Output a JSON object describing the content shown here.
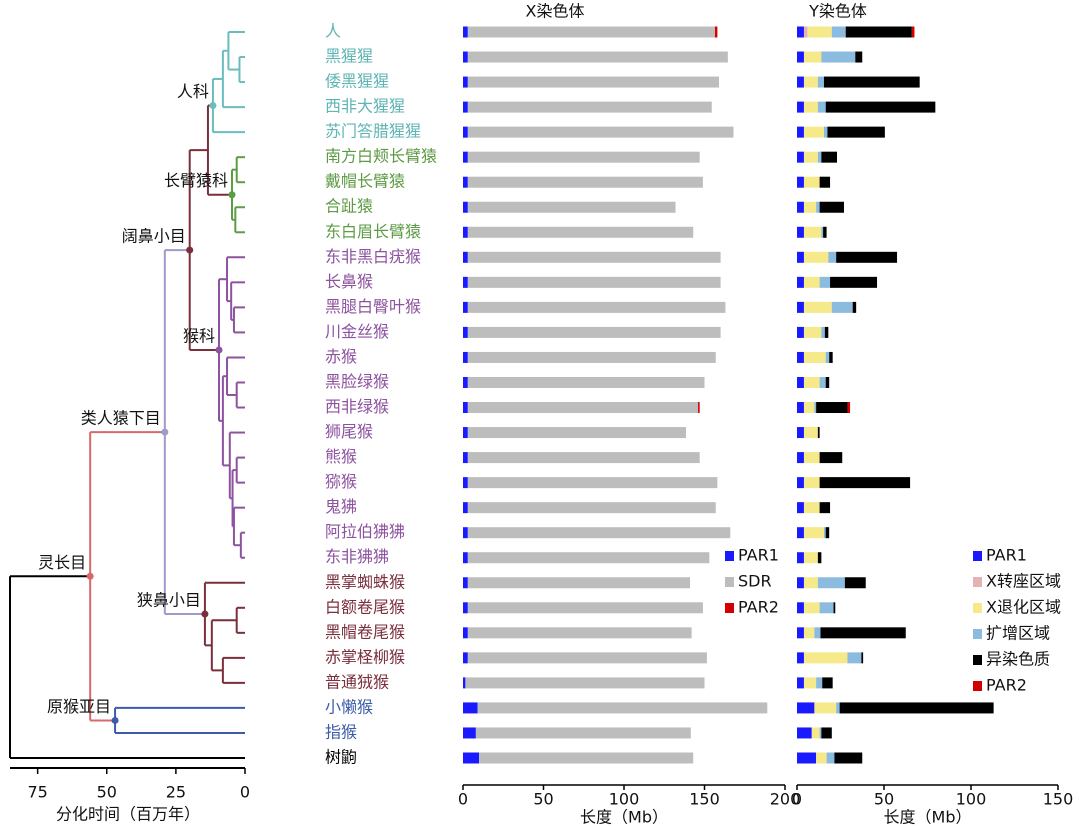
{
  "tree": {
    "xlabel": "分化时间（百万年）",
    "xlim": [
      85,
      0
    ],
    "xticks": [
      75,
      50,
      25,
      0
    ],
    "species": [
      {
        "name": "人",
        "color": "#5fb4b4"
      },
      {
        "name": "黑猩猩",
        "color": "#5fb4b4"
      },
      {
        "name": "倭黑猩猩",
        "color": "#5fb4b4"
      },
      {
        "name": "西非大猩猩",
        "color": "#5fb4b4"
      },
      {
        "name": "苏门答腊猩猩",
        "color": "#5fb4b4"
      },
      {
        "name": "南方白颊长臂猿",
        "color": "#5e9b45"
      },
      {
        "name": "戴帽长臂猿",
        "color": "#5e9b45"
      },
      {
        "name": "合趾猿",
        "color": "#5e9b45"
      },
      {
        "name": "东白眉长臂猿",
        "color": "#5e9b45"
      },
      {
        "name": "东非黑白疣猴",
        "color": "#8d52a0"
      },
      {
        "name": "长鼻猴",
        "color": "#8d52a0"
      },
      {
        "name": "黑腿白臀叶猴",
        "color": "#8d52a0"
      },
      {
        "name": "川金丝猴",
        "color": "#8d52a0"
      },
      {
        "name": "赤猴",
        "color": "#8d52a0"
      },
      {
        "name": "黑脸绿猴",
        "color": "#8d52a0"
      },
      {
        "name": "西非绿猴",
        "color": "#8d52a0"
      },
      {
        "name": "狮尾猴",
        "color": "#8d52a0"
      },
      {
        "name": "熊猴",
        "color": "#8d52a0"
      },
      {
        "name": "猕猴",
        "color": "#8d52a0"
      },
      {
        "name": "鬼狒",
        "color": "#8d52a0"
      },
      {
        "name": "阿拉伯狒狒",
        "color": "#8d52a0"
      },
      {
        "name": "东非狒狒",
        "color": "#8d52a0"
      },
      {
        "name": "黑掌蜘蛛猴",
        "color": "#7b2f3c"
      },
      {
        "name": "白额卷尾猴",
        "color": "#7b2f3c"
      },
      {
        "name": "黑帽卷尾猴",
        "color": "#7b2f3c"
      },
      {
        "name": "赤掌柽柳猴",
        "color": "#7b2f3c"
      },
      {
        "name": "普通狨猴",
        "color": "#7b2f3c"
      },
      {
        "name": "小懒猴",
        "color": "#3c5ba8"
      },
      {
        "name": "指猴",
        "color": "#3c5ba8"
      },
      {
        "name": "树鼩",
        "color": "#000000"
      }
    ],
    "root": {
      "age": 85,
      "color": "#000000",
      "children": [
        {
          "age": 56,
          "color": "#d9686b",
          "label": "灵长目",
          "children": [
            {
              "age": 29,
              "color": "#9d9bc9",
              "label": "类人猿下目",
              "children": [
                {
                  "age": 20,
                  "color": "#7b2f3c",
                  "label": "阔鼻小目",
                  "children": [
                    {
                      "age": 13.4,
                      "children": [
                        {
                          "age": 11.6,
                          "color": "#6bbcbc",
                          "label": "人科",
                          "children": [
                            {
                              "age": 8,
                              "children": [
                                {
                                  "age": 6,
                                  "children": [
                                    0,
                                    {
                                      "age": 2,
                                      "children": [
                                        1,
                                        2
                                      ]
                                    }
                                  ]
                                },
                                3
                              ]
                            },
                            4
                          ]
                        },
                        {
                          "age": 4.7,
                          "color": "#5e9b45",
                          "label": "长臂猿科",
                          "children": [
                            {
                              "age": 3,
                              "children": [
                                5,
                                6
                              ]
                            },
                            {
                              "age": 3.5,
                              "children": [
                                7,
                                8
                              ]
                            }
                          ]
                        }
                      ]
                    },
                    {
                      "age": 9.4,
                      "color": "#8d52a0",
                      "label": "猴科",
                      "children": [
                        {
                          "age": 6.5,
                          "children": [
                            9,
                            {
                              "age": 5,
                              "children": [
                                10,
                                {
                                  "age": 4,
                                  "children": [
                                    11,
                                    12
                                  ]
                                }
                              ]
                            }
                          ]
                        },
                        {
                          "age": 8,
                          "children": [
                            {
                              "age": 6.5,
                              "children": [
                                13,
                                {
                                  "age": 3,
                                  "children": [
                                    14,
                                    15
                                  ]
                                }
                              ]
                            },
                            {
                              "age": 5.5,
                              "children": [
                                16,
                                {
                                  "age": 4.5,
                                  "children": [
                                    {
                                      "age": 3,
                                      "children": [
                                        17,
                                        18
                                      ]
                                    },
                                    {
                                      "age": 4,
                                      "children": [
                                        19,
                                        {
                                          "age": 1.5,
                                          "children": [
                                            20,
                                            21
                                          ]
                                        }
                                      ]
                                    }
                                  ]
                                }
                              ]
                            }
                          ]
                        }
                      ]
                    }
                  ]
                },
                {
                  "age": 14.5,
                  "color": "#7b2f3c",
                  "label": "狭鼻小目",
                  "children": [
                    22,
                    {
                      "age": 12,
                      "children": [
                        {
                          "age": 3,
                          "children": [
                            23,
                            24
                          ]
                        },
                        {
                          "age": 8,
                          "children": [
                            25,
                            26
                          ]
                        }
                      ]
                    }
                  ]
                }
              ]
            },
            {
              "age": 47,
              "color": "#3c5ba8",
              "label": "原猴亚目",
              "children": [
                27,
                28
              ]
            }
          ]
        },
        29
      ]
    }
  },
  "chart_data": [
    {
      "type": "stacked_barh",
      "title": "X染色体",
      "xlabel": "长度（Mb）",
      "xlim": [
        0,
        200
      ],
      "xticks": [
        0,
        50,
        100,
        150,
        200
      ],
      "series": [
        {
          "name": "PAR1",
          "color": "#1a1aff",
          "values": [
            3,
            3,
            3,
            3,
            3,
            3,
            3,
            3,
            3,
            3,
            3,
            3,
            3,
            3,
            3,
            3,
            3,
            3,
            3,
            3,
            3,
            3,
            3,
            3,
            3,
            3,
            1.5,
            9,
            8,
            10
          ]
        },
        {
          "name": "SDR",
          "color": "#bdbdbd",
          "values": [
            153.5,
            161.5,
            156,
            151.5,
            165,
            144,
            146,
            129,
            140,
            157,
            157,
            160,
            157,
            154,
            147,
            143,
            135.5,
            144,
            155,
            154,
            163,
            150,
            138,
            146,
            139,
            148.5,
            148.5,
            180,
            133.5,
            133
          ]
        },
        {
          "name": "PAR2",
          "color": "#d40000",
          "values": [
            1.5,
            0,
            0,
            0,
            0,
            0,
            0,
            0,
            0,
            0,
            0,
            0,
            0,
            0,
            0,
            1,
            0,
            0,
            0,
            0,
            0,
            0,
            0,
            0,
            0,
            0,
            0,
            0,
            0,
            0
          ]
        }
      ]
    },
    {
      "type": "stacked_barh",
      "title": "Y染色体",
      "xlabel": "长度（Mb）",
      "xlim": [
        0,
        150
      ],
      "xticks": [
        0,
        50,
        100,
        150
      ],
      "series": [
        {
          "name": "PAR1",
          "color": "#1a1aff",
          "values": [
            4,
            4,
            4,
            4,
            4,
            4,
            4,
            4,
            4,
            4,
            4,
            4,
            4,
            4,
            4,
            4,
            4,
            4,
            4,
            4,
            4,
            4,
            4,
            4,
            4,
            4,
            4,
            10,
            8.5,
            11
          ]
        },
        {
          "name": "X转座区域",
          "color": "#e3b3b6",
          "values": [
            2,
            0,
            0,
            0,
            0,
            0,
            0,
            0,
            0,
            0,
            0,
            0,
            0,
            0,
            0,
            0,
            0,
            0,
            0,
            0,
            0,
            0,
            0,
            0,
            0,
            0,
            0,
            0,
            0,
            0
          ]
        },
        {
          "name": "X退化区域",
          "color": "#f5e98a",
          "values": [
            14,
            10,
            8,
            8,
            11.5,
            8,
            9,
            7,
            10,
            14,
            9,
            16,
            10,
            12.5,
            9,
            6,
            8,
            9,
            9,
            9,
            11.5,
            8,
            8,
            9,
            6,
            25,
            7,
            12.5,
            4.5,
            6
          ]
        },
        {
          "name": "扩增区域",
          "color": "#8cbbe0",
          "values": [
            8,
            19.5,
            3.5,
            4.5,
            2,
            2,
            0,
            2,
            1,
            4.5,
            6,
            12,
            2,
            2,
            3.5,
            1,
            0,
            0,
            0,
            0,
            1,
            0,
            15.5,
            8,
            3.5,
            8,
            3.5,
            2,
            1,
            4.5
          ]
        },
        {
          "name": "异染色质",
          "color": "#000000",
          "values": [
            38,
            4,
            55,
            63,
            33,
            9,
            6,
            14,
            2,
            35,
            27,
            2,
            2,
            2,
            2,
            18,
            1,
            13,
            52,
            6,
            2,
            2,
            12,
            1,
            49,
            1,
            6,
            88.5,
            6,
            16
          ]
        },
        {
          "name": "PAR2",
          "color": "#d40000",
          "values": [
            1.5,
            0,
            0,
            0,
            0,
            0,
            0,
            0,
            0,
            0,
            0,
            0,
            0,
            0,
            0,
            1.5,
            0,
            0,
            0,
            0,
            0,
            0,
            0,
            0,
            0,
            0,
            0,
            0,
            0,
            0
          ]
        }
      ]
    }
  ]
}
